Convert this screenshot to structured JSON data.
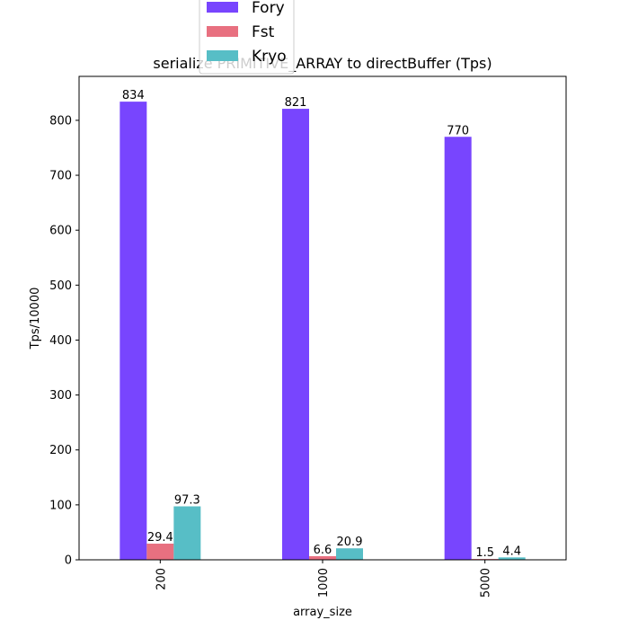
{
  "chart_data": {
    "type": "bar",
    "title": "serialize PRIMITIVE_ARRAY to directBuffer (Tps)",
    "xlabel": "array_size",
    "ylabel": "Tps/10000",
    "categories": [
      "200",
      "1000",
      "5000"
    ],
    "ylim": [
      0,
      880
    ],
    "yticks": [
      0,
      100,
      200,
      300,
      400,
      500,
      600,
      700,
      800
    ],
    "grid": false,
    "legend_position": "top-center",
    "series": [
      {
        "name": "Fory",
        "color": "#7845fe",
        "values": [
          834,
          821,
          770
        ],
        "labels": [
          "834",
          "821",
          "770"
        ]
      },
      {
        "name": "Fst",
        "color": "#e87080",
        "values": [
          29.4,
          6.6,
          1.5
        ],
        "labels": [
          "29.4",
          "6.6",
          "1.5"
        ]
      },
      {
        "name": "Kryo",
        "color": "#57bec6",
        "values": [
          97.3,
          20.9,
          4.4
        ],
        "labels": [
          "97.3",
          "20.9",
          "4.4"
        ]
      }
    ]
  }
}
